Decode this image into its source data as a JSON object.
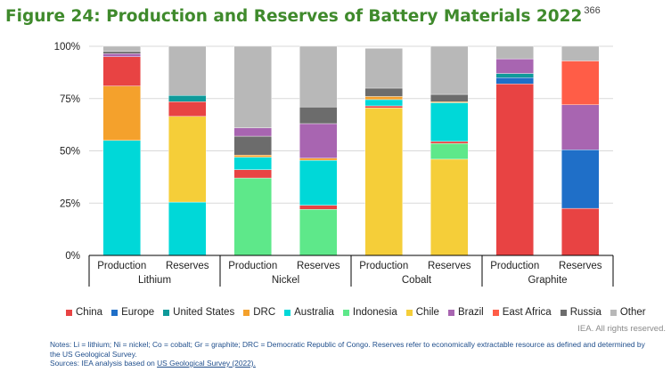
{
  "title": "Figure 24: Production and Reserves of Battery Materials 2022",
  "footnote_ref": "366",
  "rights": "IEA. All rights reserved.",
  "notes": {
    "line1": "Notes: Li = lithium; Ni = nickel; Co = cobalt; Gr = graphite; DRC = Democratic Republic of Congo. Reserves refer to economically extractable resource as defined and determined by the US Geological Survey.",
    "sources_prefix": "Sources: IEA analysis based on ",
    "sources_link": "US Geological Survey (2022)."
  },
  "colors": {
    "China": "#e84343",
    "Europe": "#1f6fc8",
    "United States": "#0f9a9a",
    "DRC": "#f4a12c",
    "Australia": "#00d8d8",
    "Indonesia": "#5ee88a",
    "Chile": "#f5ce39",
    "Brazil": "#a865b1",
    "East Africa": "#ff5d47",
    "Russia": "#6c6c6c",
    "Other": "#b8b8b8"
  },
  "chart_data": {
    "type": "bar",
    "stacked": true,
    "percent": true,
    "yticks": [
      "0%",
      "25%",
      "50%",
      "75%",
      "100%"
    ],
    "ylim": [
      0,
      100
    ],
    "groups": [
      "Lithium",
      "Nickel",
      "Cobalt",
      "Graphite"
    ],
    "categories": [
      {
        "group": "Lithium",
        "label": "Production"
      },
      {
        "group": "Lithium",
        "label": "Reserves"
      },
      {
        "group": "Nickel",
        "label": "Production"
      },
      {
        "group": "Nickel",
        "label": "Reserves"
      },
      {
        "group": "Cobalt",
        "label": "Production"
      },
      {
        "group": "Cobalt",
        "label": "Reserves"
      },
      {
        "group": "Graphite",
        "label": "Production"
      },
      {
        "group": "Graphite",
        "label": "Reserves"
      }
    ],
    "series": [
      {
        "name": "Australia",
        "values": [
          55,
          25.5,
          0,
          0,
          0,
          0,
          0,
          0
        ]
      },
      {
        "name": "DRC",
        "values": [
          26,
          0,
          0,
          0,
          0,
          0,
          0,
          0
        ]
      },
      {
        "name": "Chile",
        "values": [
          0,
          41,
          0,
          0,
          70.5,
          46,
          0,
          0
        ]
      },
      {
        "name": "Indonesia",
        "values": [
          0,
          0,
          37,
          22,
          0,
          7.5,
          0,
          0
        ]
      },
      {
        "name": "China",
        "values": [
          14,
          7,
          4,
          2,
          1,
          1,
          82,
          22.5
        ]
      },
      {
        "name": "Europe",
        "values": [
          0,
          0,
          0,
          0,
          0,
          0,
          3,
          28
        ]
      },
      {
        "name": "United States",
        "values": [
          0,
          0,
          0,
          0,
          0,
          0,
          2,
          0
        ]
      },
      {
        "name": "Australia",
        "values": [
          0,
          0,
          6,
          21.5,
          3,
          18.5,
          0,
          0
        ]
      },
      {
        "name": "DRC",
        "values": [
          0,
          0,
          1,
          1,
          1.5,
          0.5,
          0,
          0
        ]
      },
      {
        "name": "Brazil",
        "values": [
          1.5,
          0,
          0,
          16.5,
          0,
          0,
          7,
          21.5
        ]
      },
      {
        "name": "East Africa",
        "values": [
          0,
          0,
          0,
          0,
          0,
          0,
          0,
          21
        ]
      },
      {
        "name": "Russia",
        "values": [
          1,
          0,
          9,
          8,
          4,
          3.5,
          0,
          0
        ]
      },
      {
        "name": "United States",
        "values": [
          0,
          3,
          0,
          0,
          0,
          0,
          0,
          0
        ]
      },
      {
        "name": "Brazil",
        "values": [
          0,
          0,
          4,
          0,
          0,
          0,
          0,
          0
        ]
      },
      {
        "name": "Other",
        "values": [
          2.5,
          23.5,
          39,
          29,
          19,
          23,
          6,
          7
        ]
      }
    ],
    "legend": [
      "China",
      "Europe",
      "United States",
      "DRC",
      "Australia",
      "Indonesia",
      "Chile",
      "Brazil",
      "East Africa",
      "Russia",
      "Other"
    ],
    "legend_position": "bottom",
    "grid": "y"
  }
}
